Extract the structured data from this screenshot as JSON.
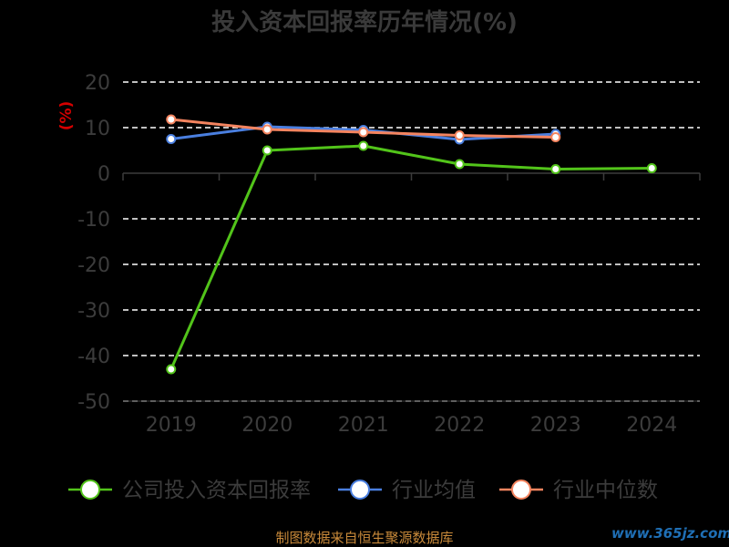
{
  "chart_data": {
    "type": "line",
    "title": "投入资本回报率历年情况(%)",
    "ylabel": "(%)",
    "xlabel": "",
    "categories": [
      "2019",
      "2020",
      "2021",
      "2022",
      "2023",
      "2024"
    ],
    "ylim": [
      -50,
      20
    ],
    "yticks": [
      20,
      10,
      0,
      -10,
      -20,
      -30,
      -40,
      -50
    ],
    "grid": "horizontal dashed",
    "legend_position": "bottom",
    "series": [
      {
        "name": "公司投入资本回报率",
        "color": "#52c41a",
        "values": [
          -43,
          5,
          6,
          2,
          0.9,
          1.1
        ]
      },
      {
        "name": "行业均值",
        "color": "#4a7fe0",
        "values": [
          7.5,
          10.2,
          9.5,
          7.4,
          8.6,
          null
        ]
      },
      {
        "name": "行业中位数",
        "color": "#f4845f",
        "values": [
          11.8,
          9.6,
          9.0,
          8.3,
          7.9,
          null
        ]
      }
    ]
  },
  "footer": {
    "source": "制图数据来自恒生聚源数据库",
    "watermark": "www.365jz.com"
  }
}
